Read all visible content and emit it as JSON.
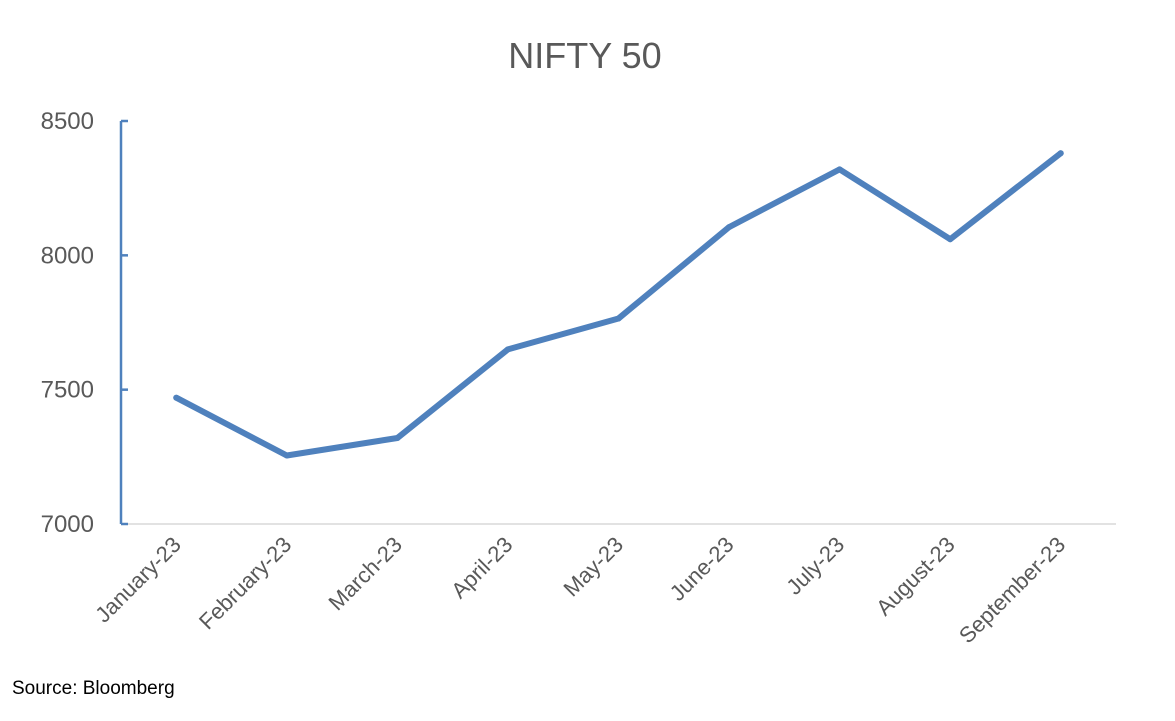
{
  "chart_data": {
    "type": "line",
    "title": "NIFTY 50",
    "xlabel": "",
    "ylabel": "",
    "categories": [
      "January-23",
      "February-23",
      "March-23",
      "April-23",
      "May-23",
      "June-23",
      "July-23",
      "August-23",
      "September-23"
    ],
    "series": [
      {
        "values": [
          7470,
          7255,
          7320,
          7650,
          7765,
          8105,
          8320,
          8060,
          8380
        ]
      }
    ],
    "ylim": [
      7000,
      8500
    ],
    "yticks": [
      7000,
      7500,
      8000,
      8500
    ],
    "grid": false,
    "line_color": "#4f81bd",
    "axis_color": "#4f81bd"
  },
  "source": "Source: Bloomberg"
}
